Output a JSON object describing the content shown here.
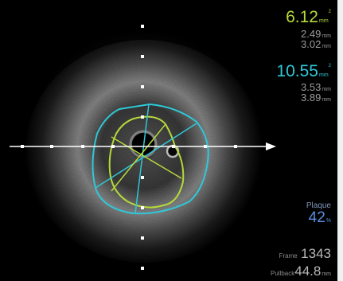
{
  "lumen": {
    "area": "6.12",
    "area_unit": "mm",
    "area_sup": "2",
    "min_diameter": "2.49",
    "max_diameter": "3.02",
    "diameter_unit": "mm",
    "color": "#b5d93a"
  },
  "vessel": {
    "area": "10.55",
    "area_unit": "mm",
    "area_sup": "2",
    "min_diameter": "3.53",
    "max_diameter": "3.89",
    "diameter_unit": "mm",
    "color": "#2ec8d8"
  },
  "plaque": {
    "label": "Plaque",
    "value": "42",
    "unit": "%"
  },
  "frame": {
    "label": "Frame",
    "value": "1343"
  },
  "pullback": {
    "label": "Pullback",
    "value": "44.8",
    "unit": "mm"
  },
  "icons": {
    "arrow": "arrow-right-icon",
    "vertical_scale": "depth-scale-dots",
    "horizontal_scale": "depth-scale-dots"
  }
}
